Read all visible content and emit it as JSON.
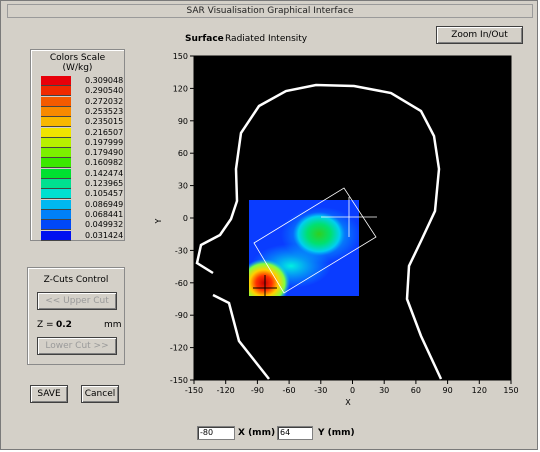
{
  "window": {
    "title": "SAR Visualisation Graphical Interface"
  },
  "header": {
    "surface_label": "Surface",
    "surface_value": "Radiated Intensity"
  },
  "toolbar": {
    "zoom_label": "Zoom In/Out"
  },
  "colors_scale": {
    "title": "Colors Scale",
    "unit": "(W/kg)",
    "entries": [
      {
        "value": "0.309048",
        "color": "#e8000a"
      },
      {
        "value": "0.290540",
        "color": "#f02a00"
      },
      {
        "value": "0.272032",
        "color": "#f45a00"
      },
      {
        "value": "0.253523",
        "color": "#f88a00"
      },
      {
        "value": "0.235015",
        "color": "#f8b800"
      },
      {
        "value": "0.216507",
        "color": "#f0e400"
      },
      {
        "value": "0.197999",
        "color": "#b8f000"
      },
      {
        "value": "0.179490",
        "color": "#7cf000"
      },
      {
        "value": "0.160982",
        "color": "#3ce800"
      },
      {
        "value": "0.142474",
        "color": "#00e030"
      },
      {
        "value": "0.123965",
        "color": "#00e090"
      },
      {
        "value": "0.105457",
        "color": "#00e0d0"
      },
      {
        "value": "0.086949",
        "color": "#00b8f0"
      },
      {
        "value": "0.068441",
        "color": "#0080f8"
      },
      {
        "value": "0.049932",
        "color": "#0048f8"
      },
      {
        "value": "0.031424",
        "color": "#0010f0"
      }
    ]
  },
  "zcuts": {
    "title": "Z-Cuts Control",
    "upper_label": "<< Upper Cut",
    "z_label": "Z =",
    "z_value": "0.2",
    "z_unit": "mm",
    "lower_label": "Lower Cut >>"
  },
  "actions": {
    "save_label": "SAVE",
    "cancel_label": "Cancel"
  },
  "plot": {
    "x_axis_label": "X",
    "y_axis_label": "Y",
    "x_ticks": [
      "-150",
      "-120",
      "-90",
      "-60",
      "-30",
      "0",
      "30",
      "60",
      "90",
      "120",
      "150"
    ],
    "y_ticks": [
      "150",
      "120",
      "90",
      "60",
      "30",
      "0",
      "-30",
      "-60",
      "-90",
      "-120",
      "-150"
    ],
    "background": "#000000",
    "outline_color": "#ffffff"
  },
  "coords": {
    "x_value": "-80",
    "x_label": "X (mm)",
    "y_value": "64",
    "y_label": "Y (mm)"
  }
}
